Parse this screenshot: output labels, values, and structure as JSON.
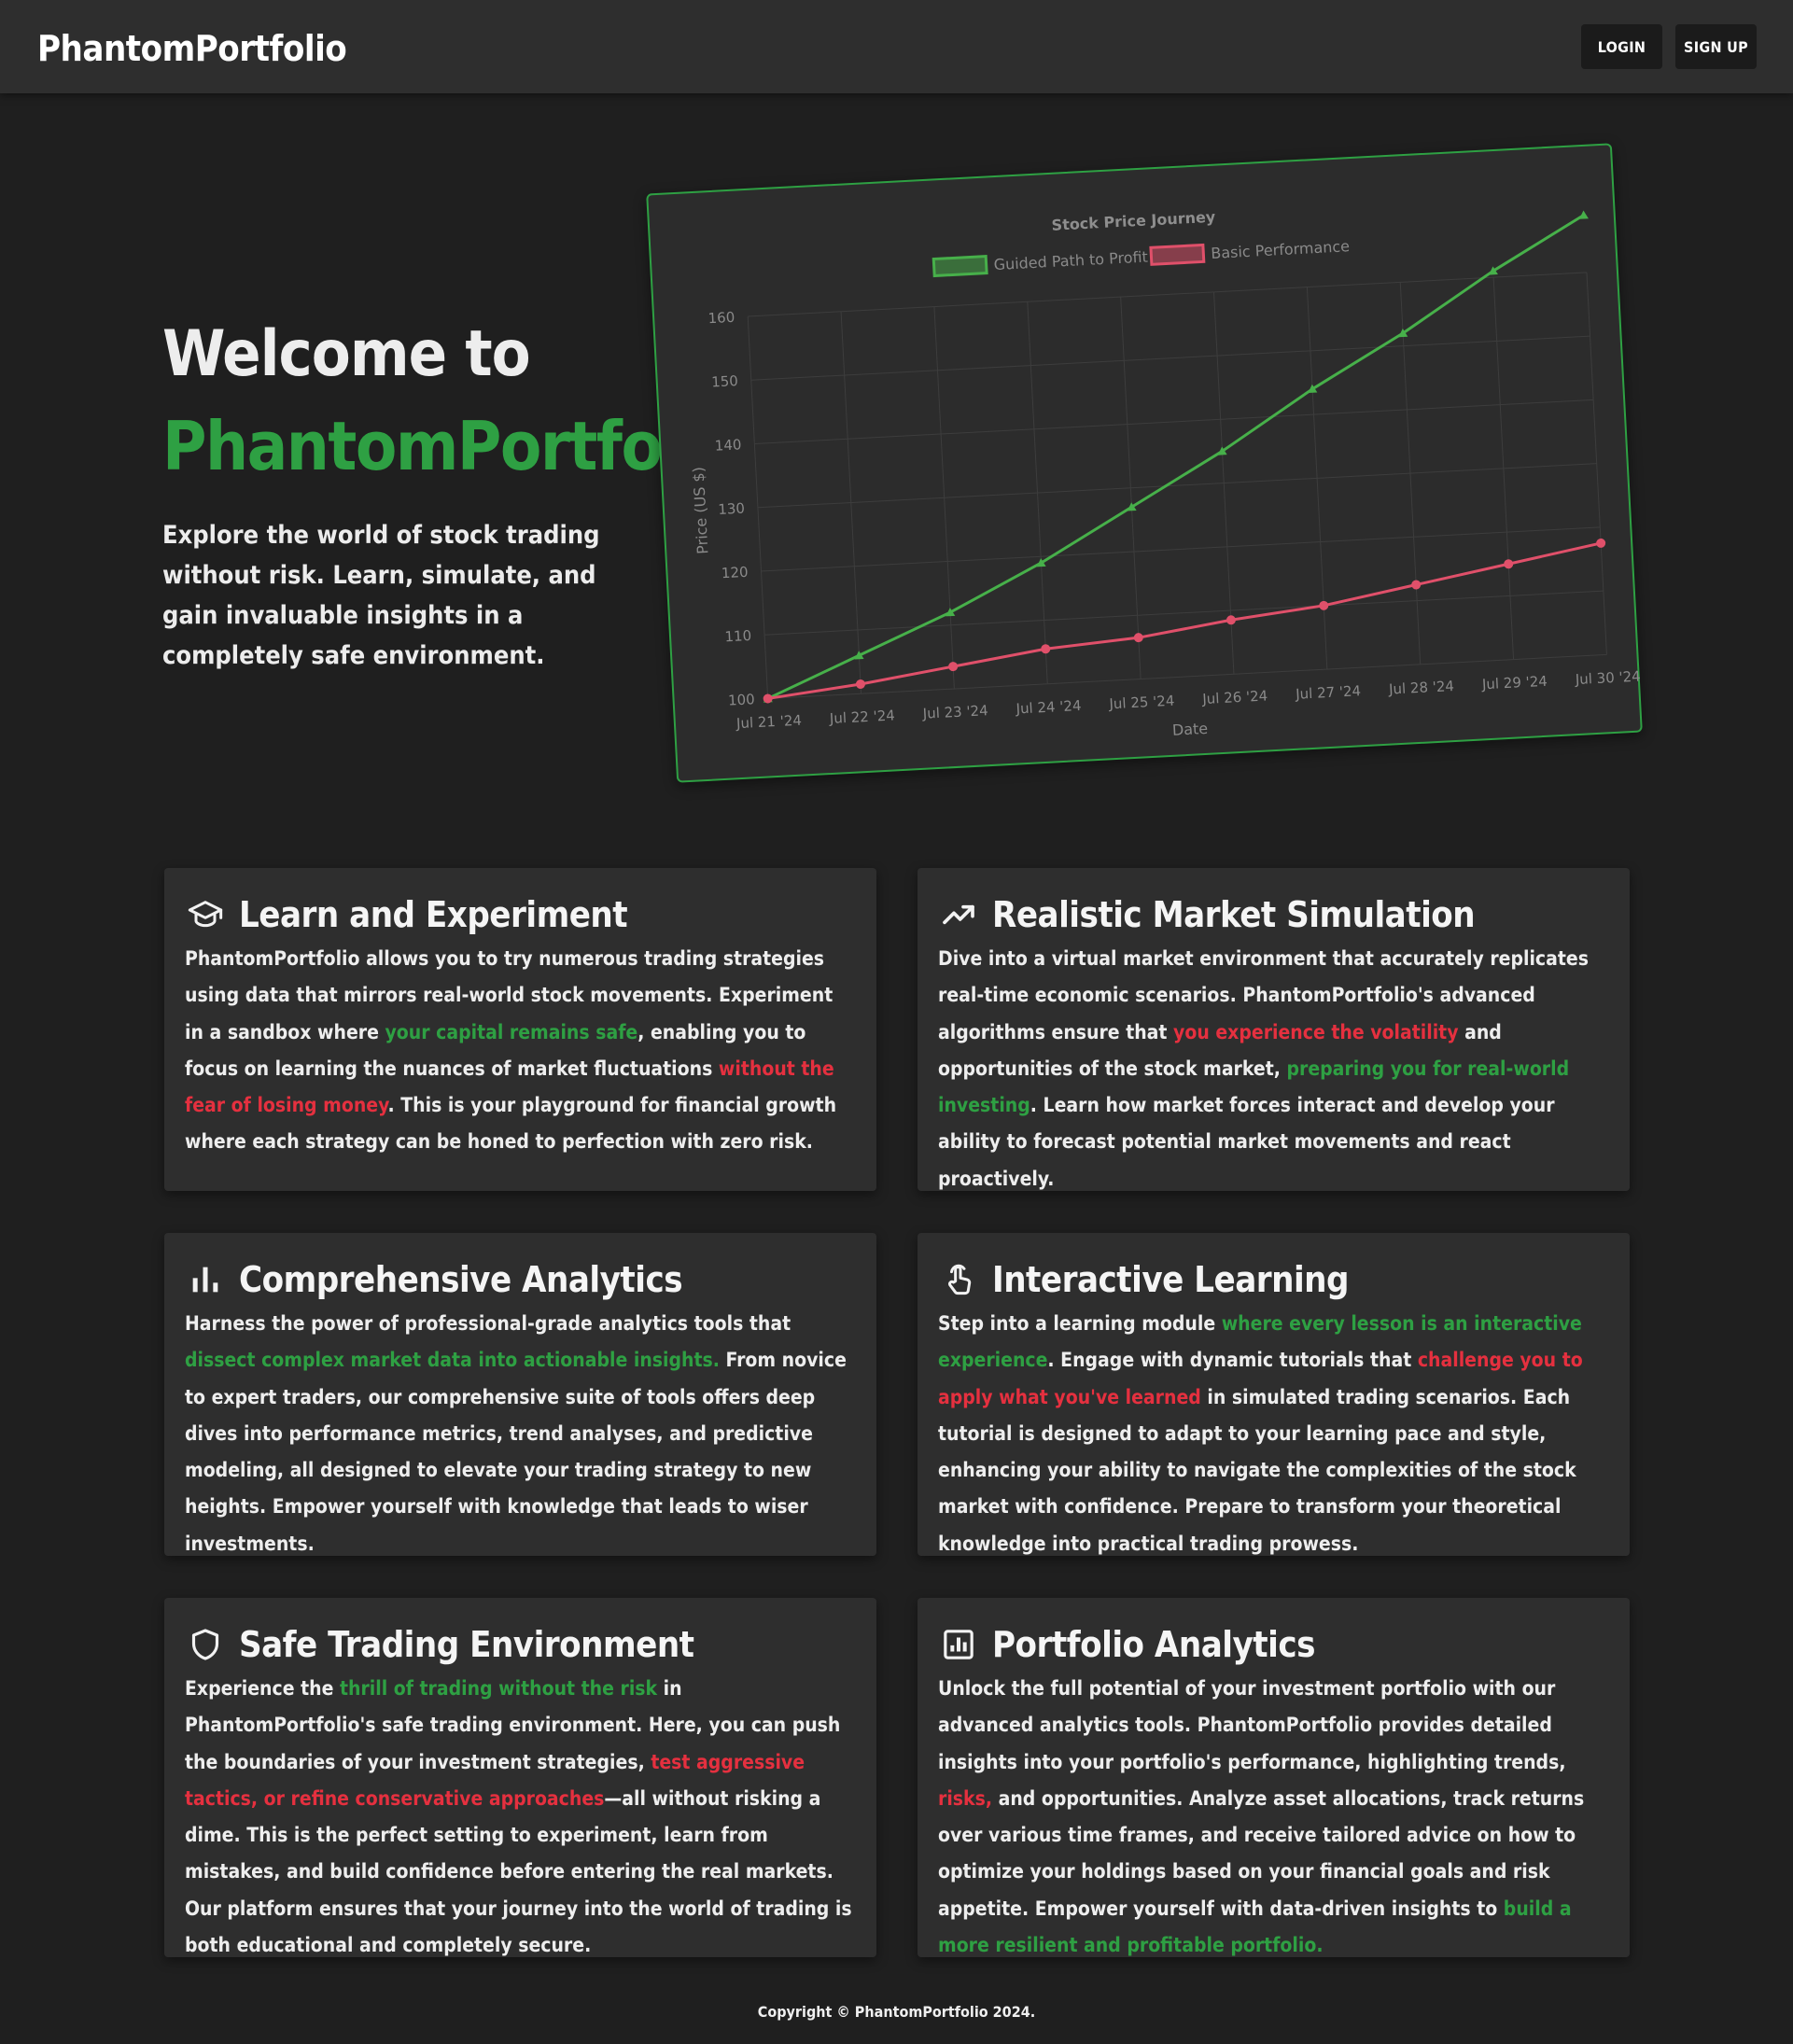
{
  "nav": {
    "brand": "PhantomPortfolio",
    "login": "LOGIN",
    "signup": "SIGN UP"
  },
  "hero": {
    "title_line1": "Welcome to",
    "title_line2": "PhantomPortfolio",
    "subtitle": "Explore the world of stock trading without risk. Learn, simulate, and gain invaluable insights in a completely safe environment."
  },
  "chart_data": {
    "type": "line",
    "title": "Stock Price Journey",
    "xlabel": "Date",
    "ylabel": "Price (US $)",
    "categories": [
      "Jul 21 '24",
      "Jul 22 '24",
      "Jul 23 '24",
      "Jul 24 '24",
      "Jul 25 '24",
      "Jul 26 '24",
      "Jul 27 '24",
      "Jul 28 '24",
      "Jul 29 '24",
      "Jul 30 '24"
    ],
    "ylim": [
      100,
      160
    ],
    "yticks": [
      100,
      110,
      120,
      130,
      140,
      150,
      160
    ],
    "grid": true,
    "legend": "top-center",
    "series": [
      {
        "name": "Guided Path to Profit",
        "color": "#47b04a",
        "values": [
          100,
          106,
          112,
          119,
          127,
          135,
          144,
          152,
          161,
          169
        ]
      },
      {
        "name": "Basic Performance",
        "color": "#e0506a",
        "values": [
          100,
          101.5,
          103.5,
          105.5,
          106.5,
          108.5,
          110,
          112.5,
          115,
          117.5
        ]
      }
    ]
  },
  "cards": [
    {
      "icon": "graduation-cap-icon",
      "title": "Learn and Experiment",
      "segments": [
        {
          "t": "PhantomPortfolio allows you to try numerous trading strategies using data that mirrors real-world stock movements. Experiment in a sandbox where "
        },
        {
          "t": "your capital remains safe",
          "c": "g"
        },
        {
          "t": ", enabling you to focus on learning the nuances of market fluctuations "
        },
        {
          "t": "without the fear of losing money",
          "c": "r"
        },
        {
          "t": ". This is your playground for financial growth where each strategy can be honed to perfection with zero risk."
        }
      ]
    },
    {
      "icon": "trending-up-icon",
      "title": "Realistic Market Simulation",
      "segments": [
        {
          "t": "Dive into a virtual market environment that accurately replicates real-time economic scenarios. PhantomPortfolio's advanced algorithms ensure that "
        },
        {
          "t": "you experience the volatility",
          "c": "r"
        },
        {
          "t": " and opportunities of the stock market, "
        },
        {
          "t": "preparing you for real-world investing",
          "c": "g"
        },
        {
          "t": ". Learn how market forces interact and develop your ability to forecast potential market movements and react proactively."
        }
      ]
    },
    {
      "icon": "bar-chart-icon",
      "title": "Comprehensive Analytics",
      "segments": [
        {
          "t": "Harness the power of professional-grade analytics tools that "
        },
        {
          "t": "dissect complex market data into actionable insights.",
          "c": "g"
        },
        {
          "t": " From novice to expert traders, our comprehensive suite of tools offers deep dives into performance metrics, trend analyses, and predictive modeling, all designed to elevate your trading strategy to new heights. Empower yourself with knowledge that leads to wiser investments."
        }
      ]
    },
    {
      "icon": "touch-hand-icon",
      "title": "Interactive Learning",
      "segments": [
        {
          "t": "Step into a learning module "
        },
        {
          "t": "where every lesson is an interactive experience",
          "c": "g"
        },
        {
          "t": ". Engage with dynamic tutorials that "
        },
        {
          "t": "challenge you to apply what you've learned",
          "c": "r"
        },
        {
          "t": " in simulated trading scenarios. Each tutorial is designed to adapt to your learning pace and style, enhancing your ability to navigate the complexities of the stock market with confidence. Prepare to transform your theoretical knowledge into practical trading prowess."
        }
      ]
    },
    {
      "icon": "shield-icon",
      "title": "Safe Trading Environment",
      "segments": [
        {
          "t": "Experience the "
        },
        {
          "t": "thrill of trading without the risk",
          "c": "g"
        },
        {
          "t": " in PhantomPortfolio's safe trading environment. Here, you can push the boundaries of your investment strategies, "
        },
        {
          "t": "test aggressive tactics, or refine conservative approaches",
          "c": "r"
        },
        {
          "t": "—all without risking a dime. This is the perfect setting to experiment, learn from mistakes, and build confidence before entering the real markets. Our platform ensures that your journey into the world of trading is both educational and completely secure."
        }
      ]
    },
    {
      "icon": "analytics-box-icon",
      "title": "Portfolio Analytics",
      "segments": [
        {
          "t": "Unlock the full potential of your investment portfolio with our advanced analytics tools. PhantomPortfolio provides detailed insights into your portfolio's performance, highlighting trends, "
        },
        {
          "t": "risks,",
          "c": "r"
        },
        {
          "t": " and opportunities. Analyze asset allocations, track returns over various time frames, and receive tailored advice on how to optimize your holdings based on your financial goals and risk appetite. Empower yourself with data-driven insights to "
        },
        {
          "t": "build a more resilient and profitable portfolio.",
          "c": "g"
        }
      ]
    }
  ],
  "footer": {
    "text": "Copyright © PhantomPortfolio 2024."
  }
}
